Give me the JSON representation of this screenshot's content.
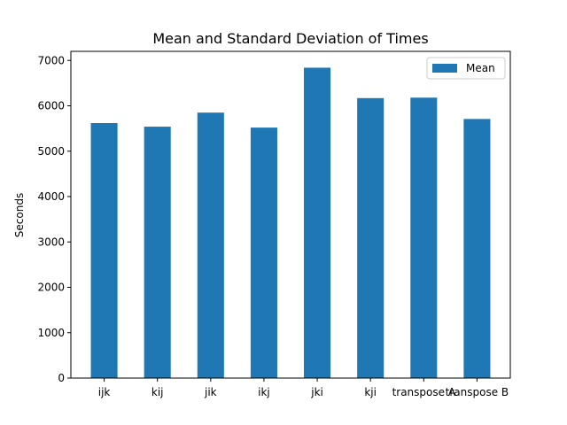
{
  "chart_data": {
    "type": "bar",
    "title": "Mean and Standard Deviation of Times",
    "xlabel": "",
    "ylabel": "Seconds",
    "categories": [
      "ijk",
      "kij",
      "jik",
      "ikj",
      "jki",
      "kji",
      "transpose A",
      "transpose B"
    ],
    "series": [
      {
        "name": "Mean",
        "values": [
          5620,
          5540,
          5850,
          5520,
          6840,
          6170,
          6180,
          5710
        ],
        "color": "#1f77b4"
      }
    ],
    "ylim": [
      0,
      7200
    ],
    "yticks": [
      0,
      1000,
      2000,
      3000,
      4000,
      5000,
      6000,
      7000
    ],
    "grid": false,
    "legend_position": "top-right"
  }
}
